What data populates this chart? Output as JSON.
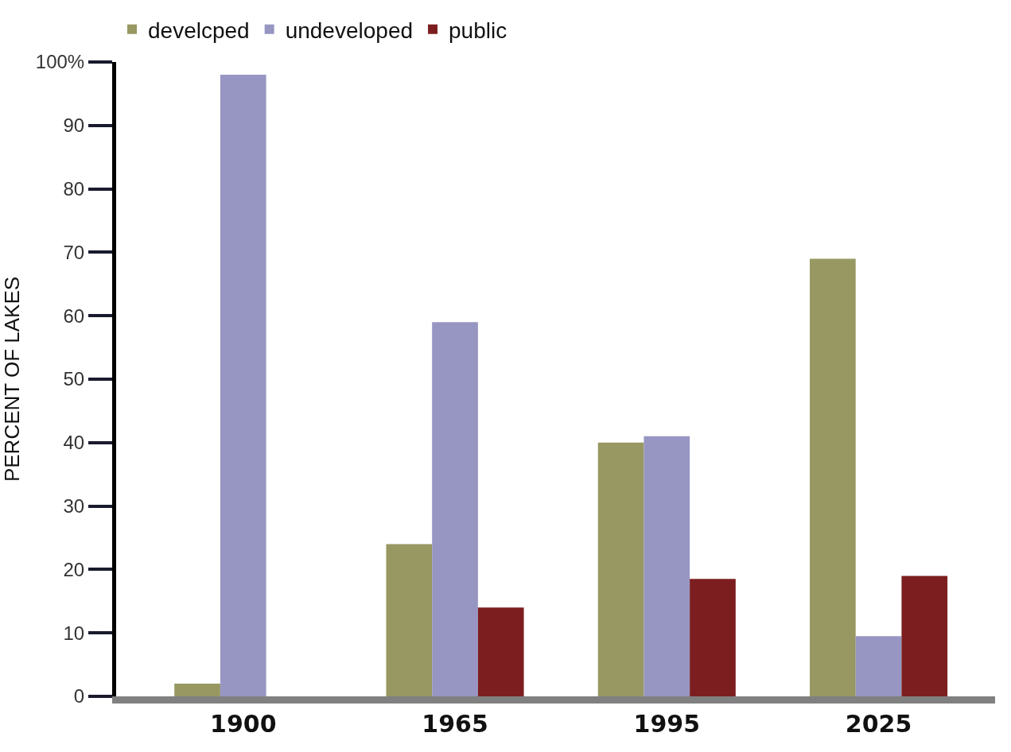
{
  "chart_data": {
    "type": "bar",
    "ylabel": "PERCENT OF LAKES",
    "categories": [
      "1900",
      "1965",
      "1995",
      "2025"
    ],
    "series": [
      {
        "name": "develcped",
        "color": "#979862",
        "values": [
          2,
          24,
          40,
          69
        ]
      },
      {
        "name": "undeveloped",
        "color": "#9796c2",
        "values": [
          98,
          59,
          41,
          9.5
        ]
      },
      {
        "name": "public",
        "color": "#7c1e1f",
        "values": [
          null,
          14,
          18.5,
          19
        ]
      }
    ],
    "ylim": [
      0,
      100
    ],
    "yticks": [
      0,
      10,
      20,
      30,
      40,
      50,
      60,
      70,
      80,
      90,
      {
        "value": 100,
        "label": "100%"
      }
    ],
    "legend": "top left"
  }
}
